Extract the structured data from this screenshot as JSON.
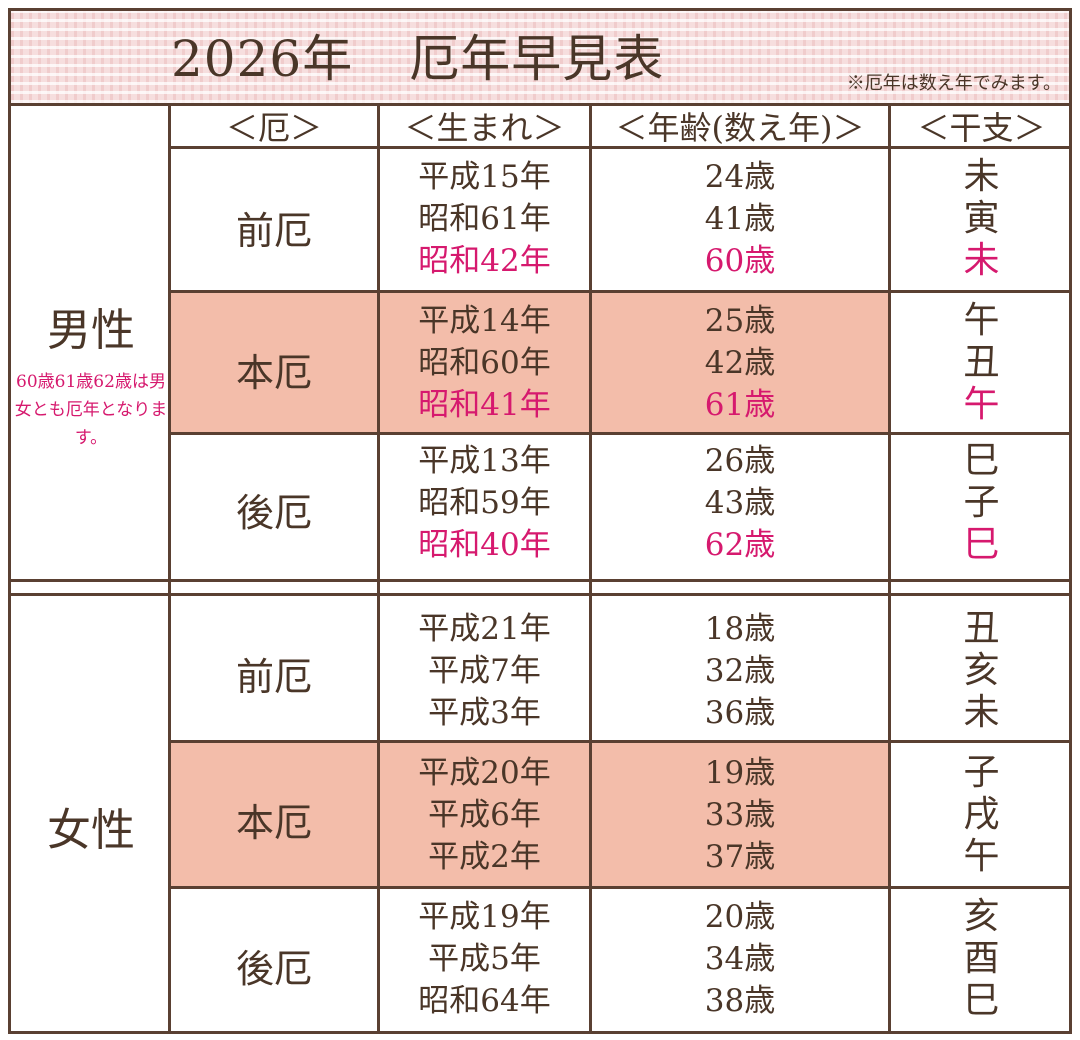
{
  "header": {
    "year": "2026年",
    "title": "厄年早見表",
    "note": "※厄年は数え年でみます。"
  },
  "columns": [
    "＜厄＞",
    "＜生まれ＞",
    "＜年齢(数え年)＞",
    "＜干支＞"
  ],
  "groups": {
    "male": {
      "label": "男性",
      "note": "60歳61歳62歳は男女とも厄年となります。",
      "rows": [
        {
          "yaku": "前厄",
          "birth": [
            "平成15年",
            "昭和61年",
            "昭和42年"
          ],
          "age": [
            "24歳",
            "41歳",
            "60歳"
          ],
          "eto": [
            "未",
            "寅",
            "未"
          ]
        },
        {
          "yaku": "本厄",
          "birth": [
            "平成14年",
            "昭和60年",
            "昭和41年"
          ],
          "age": [
            "25歳",
            "42歳",
            "61歳"
          ],
          "eto": [
            "午",
            "丑",
            "午"
          ]
        },
        {
          "yaku": "後厄",
          "birth": [
            "平成13年",
            "昭和59年",
            "昭和40年"
          ],
          "age": [
            "26歳",
            "43歳",
            "62歳"
          ],
          "eto": [
            "巳",
            "子",
            "巳"
          ]
        }
      ]
    },
    "female": {
      "label": "女性",
      "rows": [
        {
          "yaku": "前厄",
          "birth": [
            "平成21年",
            "平成7年",
            "平成3年"
          ],
          "age": [
            "18歳",
            "32歳",
            "36歳"
          ],
          "eto": [
            "丑",
            "亥",
            "未"
          ]
        },
        {
          "yaku": "本厄",
          "birth": [
            "平成20年",
            "平成6年",
            "平成2年"
          ],
          "age": [
            "19歳",
            "33歳",
            "37歳"
          ],
          "eto": [
            "子",
            "戌",
            "午"
          ]
        },
        {
          "yaku": "後厄",
          "birth": [
            "平成19年",
            "平成5年",
            "昭和64年"
          ],
          "age": [
            "20歳",
            "34歳",
            "38歳"
          ],
          "eto": [
            "亥",
            "酉",
            "巳"
          ]
        }
      ]
    }
  },
  "colors": {
    "highlight_text": "#d6196e",
    "honyaku_band": "#f3bdaa",
    "border": "#5a4032"
  }
}
